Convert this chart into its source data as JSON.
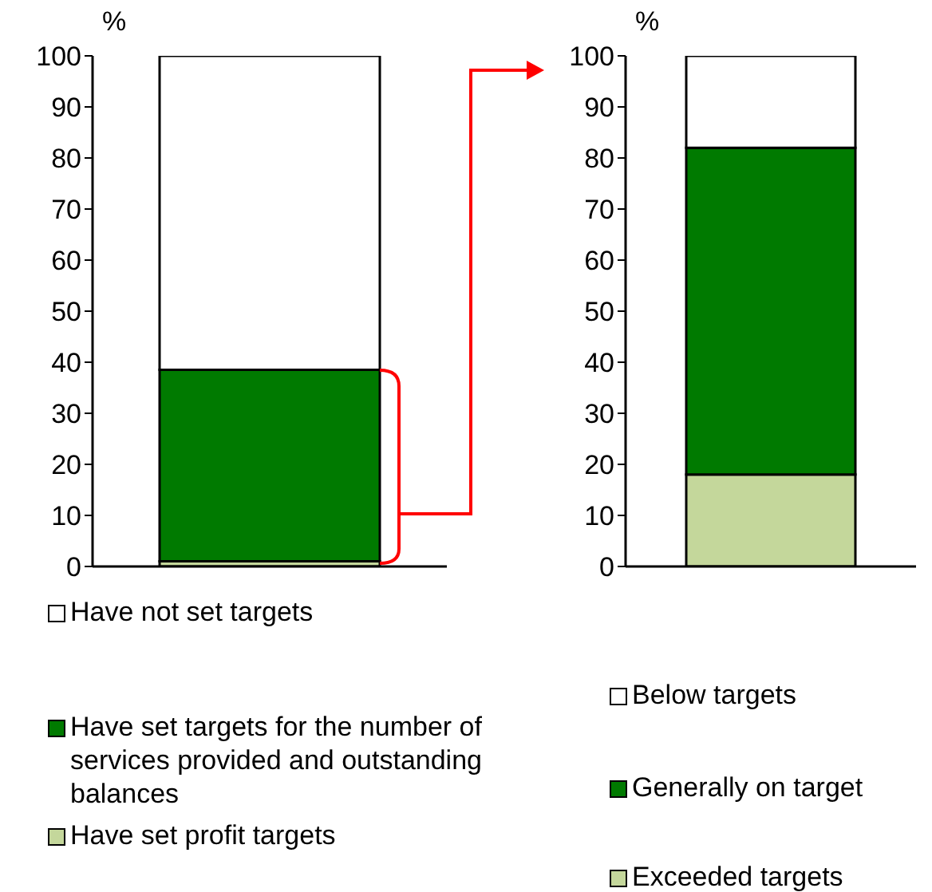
{
  "chart_data": [
    {
      "type": "bar",
      "stacked": true,
      "ylabel": "%",
      "categories": [
        null
      ],
      "ylim": [
        0,
        100
      ],
      "yticks": [
        0,
        10,
        20,
        30,
        40,
        50,
        60,
        70,
        80,
        90,
        100
      ],
      "grid": false,
      "legend": "bottom",
      "series": [
        {
          "name": "Have set profit targets",
          "color": "#c4d79b",
          "values": [
            1
          ]
        },
        {
          "name": "Have set targets for the number of services provided and outstanding balances",
          "color": "#007a00",
          "values": [
            37.5
          ]
        },
        {
          "name": "Have not set targets",
          "color": "#ffffff",
          "values": [
            61.5
          ]
        }
      ]
    },
    {
      "type": "bar",
      "stacked": true,
      "ylabel": "%",
      "categories": [
        null
      ],
      "ylim": [
        0,
        100
      ],
      "yticks": [
        0,
        10,
        20,
        30,
        40,
        50,
        60,
        70,
        80,
        90,
        100
      ],
      "grid": false,
      "legend": "bottom",
      "series": [
        {
          "name": "Exceeded targets",
          "color": "#c4d79b",
          "values": [
            18
          ]
        },
        {
          "name": "Generally on target",
          "color": "#007a00",
          "values": [
            64
          ]
        },
        {
          "name": "Below targets",
          "color": "#ffffff",
          "values": [
            18
          ]
        }
      ]
    }
  ]
}
